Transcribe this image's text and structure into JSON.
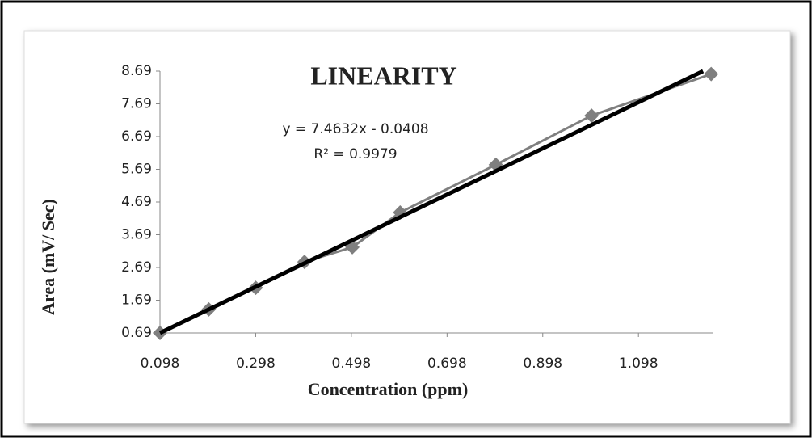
{
  "chart_data": {
    "type": "line",
    "title": "LINEARITY",
    "annotations": [
      "y = 7.4632x - 0.0408",
      "R² = 0.9979"
    ],
    "x_label": "Concentration (ppm)",
    "y_label": "Area (mV/ Sec)",
    "xlim": [
      0.098,
      1.253
    ],
    "ylim": [
      0.69,
      8.69
    ],
    "xticks": [
      0.098,
      0.298,
      0.498,
      0.698,
      0.898,
      1.098
    ],
    "yticks": [
      0.69,
      1.69,
      2.69,
      3.69,
      4.69,
      5.69,
      6.69,
      7.69,
      8.69
    ],
    "grid": false,
    "series": [
      {
        "color": "#7f7f7f",
        "marker": "diamond",
        "x": [
          0.098,
          0.2,
          0.298,
          0.4,
          0.5,
          0.6,
          0.8,
          1.0,
          1.25
        ],
        "values": [
          0.69,
          1.41,
          2.07,
          2.86,
          3.31,
          4.37,
          5.83,
          7.33,
          8.6
        ]
      },
      {
        "color": "#000000",
        "x": [
          0.098,
          1.233
        ],
        "values": [
          0.69,
          8.69
        ]
      }
    ]
  }
}
